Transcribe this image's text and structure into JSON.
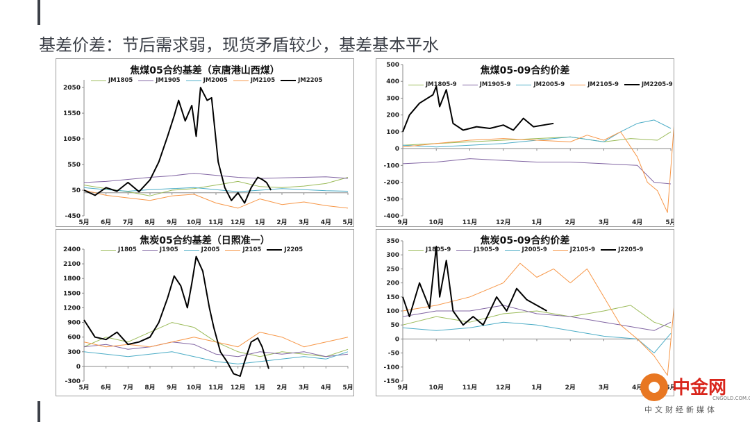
{
  "slide": {
    "title": "基差价差：节后需求弱，现货矛盾较少，基差基本平水"
  },
  "watermark": {
    "name": "中金网",
    "domain": "CNGOLD.COM.CN",
    "subtitle": "中文财经新媒体"
  },
  "chart_data": [
    {
      "id": "coke-coal-05-basis",
      "type": "line",
      "title": "焦煤05合约基差（京唐港山西煤）",
      "categories": [
        "5月",
        "6月",
        "7月",
        "8月",
        "9月",
        "10月",
        "11月",
        "12月",
        "1月",
        "2月",
        "3月",
        "4月",
        "5月"
      ],
      "ylim": [
        -450,
        2200
      ],
      "yticks": [
        2050,
        1550,
        1050,
        550,
        50,
        -450
      ],
      "grid": false,
      "legend_position": "top",
      "series": [
        {
          "name": "JM1805",
          "color": "#9bbb59",
          "width": 1,
          "x": [
            0,
            1,
            2,
            3,
            4,
            5,
            6,
            7,
            8,
            9,
            10,
            11,
            12
          ],
          "values": [
            150,
            80,
            20,
            -60,
            50,
            80,
            150,
            220,
            120,
            100,
            130,
            180,
            300
          ]
        },
        {
          "name": "JM1905",
          "color": "#8064a2",
          "width": 1,
          "x": [
            0,
            1,
            2,
            3,
            4,
            5,
            6,
            7,
            8,
            9,
            10,
            11,
            12
          ],
          "values": [
            200,
            220,
            260,
            300,
            330,
            380,
            340,
            300,
            280,
            290,
            300,
            310,
            280
          ]
        },
        {
          "name": "JM2005",
          "color": "#4bacc6",
          "width": 1,
          "x": [
            0,
            1,
            2,
            3,
            4,
            5,
            6,
            7,
            8,
            9,
            10,
            11,
            12
          ],
          "values": [
            100,
            60,
            30,
            60,
            80,
            100,
            60,
            20,
            50,
            80,
            60,
            40,
            30
          ]
        },
        {
          "name": "JM2105",
          "color": "#f79646",
          "width": 1,
          "x": [
            0,
            1,
            2,
            3,
            4,
            5,
            6,
            7,
            8,
            9,
            10,
            11,
            12
          ],
          "values": [
            50,
            -50,
            -100,
            -150,
            -60,
            -30,
            -200,
            -300,
            -120,
            -230,
            -180,
            -250,
            -300
          ]
        },
        {
          "name": "JM2205",
          "color": "#000000",
          "width": 2,
          "x": [
            0,
            0.5,
            1,
            1.5,
            2,
            2.5,
            3,
            3.4,
            3.8,
            4.1,
            4.3,
            4.6,
            4.9,
            5.1,
            5.3,
            5.6,
            5.8,
            6.1,
            6.4,
            6.7,
            7.0,
            7.3,
            7.6,
            7.9,
            8.1,
            8.3,
            8.5
          ],
          "values": [
            50,
            -50,
            100,
            30,
            200,
            20,
            250,
            600,
            1100,
            1500,
            1800,
            1400,
            1700,
            1100,
            2050,
            1800,
            1850,
            600,
            100,
            -150,
            0,
            -200,
            100,
            300,
            260,
            200,
            50
          ]
        }
      ]
    },
    {
      "id": "coke-coal-05-09-spread",
      "type": "line",
      "title": "焦煤05-09合约价差",
      "categories": [
        "9月",
        "10月",
        "11月",
        "12月",
        "1月",
        "2月",
        "3月",
        "4月",
        "5月"
      ],
      "ylim": [
        -400,
        500
      ],
      "yticks": [
        500,
        400,
        300,
        200,
        100,
        0,
        -100,
        -200,
        -300,
        -400
      ],
      "grid": false,
      "legend_position": "top",
      "series": [
        {
          "name": "JM1805-9",
          "color": "#9bbb59",
          "width": 1,
          "x": [
            0,
            1,
            2,
            3,
            4,
            5,
            6,
            6.8,
            7.6,
            8
          ],
          "values": [
            20,
            30,
            40,
            50,
            60,
            70,
            40,
            60,
            50,
            100
          ]
        },
        {
          "name": "JM1905-9",
          "color": "#8064a2",
          "width": 1,
          "x": [
            0,
            1,
            2,
            3,
            4,
            5,
            6,
            7,
            7.5,
            8
          ],
          "values": [
            -90,
            -80,
            -60,
            -70,
            -80,
            -80,
            -90,
            -100,
            -200,
            -210
          ]
        },
        {
          "name": "JM2005-9",
          "color": "#4bacc6",
          "width": 1,
          "x": [
            0,
            1,
            2,
            3,
            4,
            5,
            6,
            6.5,
            7,
            7.5,
            8
          ],
          "values": [
            20,
            10,
            20,
            30,
            50,
            70,
            40,
            100,
            150,
            170,
            120
          ]
        },
        {
          "name": "JM2105-9",
          "color": "#f79646",
          "width": 1,
          "x": [
            0,
            1,
            2,
            3,
            4,
            5,
            5.5,
            6,
            6.5,
            7,
            7.3,
            7.6,
            7.9,
            8.1
          ],
          "values": [
            10,
            30,
            50,
            60,
            50,
            40,
            80,
            50,
            100,
            -50,
            -200,
            -250,
            -380,
            150
          ]
        },
        {
          "name": "JM2205-9",
          "color": "#000000",
          "width": 2,
          "x": [
            0,
            0.2,
            0.5,
            0.9,
            1.0,
            1.1,
            1.3,
            1.5,
            1.8,
            2.2,
            2.6,
            3.0,
            3.3,
            3.6,
            3.9,
            4.2,
            4.5
          ],
          "values": [
            100,
            200,
            270,
            320,
            370,
            250,
            350,
            150,
            110,
            130,
            120,
            140,
            110,
            180,
            130,
            140,
            150
          ]
        }
      ]
    },
    {
      "id": "coke-05-basis",
      "type": "line",
      "title": "焦炭05合约基差（日照准一）",
      "categories": [
        "5月",
        "6月",
        "7月",
        "8月",
        "9月",
        "10月",
        "11月",
        "12月",
        "1月",
        "2月",
        "3月",
        "4月",
        "5月"
      ],
      "ylim": [
        -300,
        2400
      ],
      "yticks": [
        2400,
        2100,
        1800,
        1500,
        1200,
        900,
        600,
        300,
        0,
        -300
      ],
      "grid": false,
      "legend_position": "top",
      "series": [
        {
          "name": "J1805",
          "color": "#9bbb59",
          "width": 1,
          "x": [
            0,
            1,
            2,
            3,
            4,
            5,
            6,
            7,
            8,
            9,
            10,
            11,
            12
          ],
          "values": [
            400,
            600,
            500,
            700,
            900,
            800,
            500,
            300,
            200,
            300,
            250,
            200,
            350
          ]
        },
        {
          "name": "J1905",
          "color": "#8064a2",
          "width": 1,
          "x": [
            0,
            1,
            2,
            3,
            4,
            5,
            6,
            7,
            8,
            9,
            10,
            11,
            12
          ],
          "values": [
            400,
            450,
            350,
            400,
            500,
            450,
            250,
            200,
            300,
            250,
            300,
            200,
            250
          ]
        },
        {
          "name": "J2005",
          "color": "#4bacc6",
          "width": 1,
          "x": [
            0,
            1,
            2,
            3,
            4,
            5,
            6,
            7,
            8,
            9,
            10,
            11,
            12
          ],
          "values": [
            300,
            250,
            200,
            250,
            300,
            200,
            100,
            50,
            100,
            150,
            200,
            150,
            300
          ]
        },
        {
          "name": "J2105",
          "color": "#f79646",
          "width": 1,
          "x": [
            0,
            1,
            2,
            3,
            4,
            5,
            6,
            7,
            8,
            9,
            10,
            11,
            12
          ],
          "values": [
            500,
            400,
            450,
            400,
            500,
            600,
            500,
            400,
            700,
            600,
            400,
            500,
            600
          ]
        },
        {
          "name": "J2205",
          "color": "#000000",
          "width": 2,
          "x": [
            0,
            0.5,
            1,
            1.5,
            2,
            2.5,
            3,
            3.4,
            3.8,
            4.1,
            4.4,
            4.7,
            4.9,
            5.1,
            5.4,
            5.7,
            5.9,
            6.2,
            6.5,
            6.8,
            7.1,
            7.3,
            7.6,
            7.9,
            8.1,
            8.4
          ],
          "values": [
            950,
            600,
            550,
            700,
            450,
            500,
            600,
            900,
            1400,
            1850,
            1650,
            1200,
            1700,
            2250,
            1950,
            1200,
            800,
            300,
            100,
            -150,
            -200,
            100,
            500,
            580,
            400,
            -50
          ]
        }
      ]
    },
    {
      "id": "coke-05-09-spread",
      "type": "line",
      "title": "焦炭05-09合约价差",
      "categories": [
        "9月",
        "10月",
        "11月",
        "12月",
        "1月",
        "2月",
        "3月",
        "4月",
        "5月"
      ],
      "ylim": [
        -150,
        350
      ],
      "yticks": [
        350,
        300,
        250,
        200,
        150,
        100,
        50,
        0,
        -50,
        -100,
        -150
      ],
      "grid": false,
      "legend_position": "top",
      "series": [
        {
          "name": "J1805-9",
          "color": "#9bbb59",
          "width": 1,
          "x": [
            0,
            1,
            2,
            3,
            4,
            5,
            6,
            6.8,
            7.5,
            8
          ],
          "values": [
            50,
            80,
            60,
            90,
            100,
            80,
            100,
            120,
            60,
            40
          ]
        },
        {
          "name": "J1905-9",
          "color": "#8064a2",
          "width": 1,
          "x": [
            0,
            1,
            2,
            3,
            4,
            5,
            6,
            7,
            7.5,
            8
          ],
          "values": [
            80,
            100,
            100,
            120,
            90,
            80,
            60,
            40,
            30,
            60
          ]
        },
        {
          "name": "J2005-9",
          "color": "#4bacc6",
          "width": 1,
          "x": [
            0,
            1,
            2,
            3,
            4,
            5,
            6,
            7,
            7.5,
            8
          ],
          "values": [
            40,
            30,
            40,
            60,
            50,
            30,
            10,
            0,
            -50,
            20
          ]
        },
        {
          "name": "J2105-9",
          "color": "#f79646",
          "width": 1,
          "x": [
            0,
            1,
            2,
            3,
            3.5,
            4,
            4.5,
            5,
            5.5,
            6,
            6.5,
            7,
            7.5,
            7.9,
            8.1
          ],
          "values": [
            100,
            120,
            150,
            200,
            270,
            220,
            250,
            200,
            250,
            150,
            50,
            0,
            -60,
            -130,
            120
          ]
        },
        {
          "name": "J2205-9",
          "color": "#000000",
          "width": 2,
          "x": [
            0,
            0.2,
            0.5,
            0.8,
            1.0,
            1.1,
            1.3,
            1.5,
            1.8,
            2.1,
            2.4,
            2.8,
            3.1,
            3.4,
            3.7,
            4.0,
            4.3
          ],
          "values": [
            150,
            80,
            200,
            110,
            330,
            150,
            280,
            100,
            50,
            80,
            50,
            150,
            100,
            180,
            140,
            120,
            100
          ]
        }
      ]
    }
  ]
}
